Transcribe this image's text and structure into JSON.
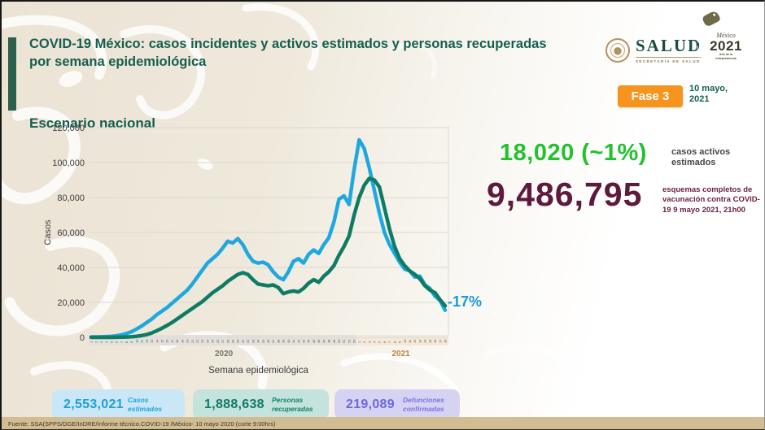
{
  "header": {
    "title": "COVID-19 México: casos incidentes y activos estimados y personas recuperadas por semana epidemiológica",
    "subtitle": "Escenario nacional"
  },
  "logos": {
    "salud": {
      "name": "SALUD",
      "subtitle": "SECRETARÍA DE SALUD"
    },
    "mexico2021": {
      "script": "México",
      "year": "2021",
      "subtitle": "Año de la Independencia"
    }
  },
  "phase": {
    "label": "Fase 3",
    "color": "#F7941E"
  },
  "report_date": "10 mayo, 2021",
  "right_panel": {
    "active": {
      "value": "18,020 (~1%)",
      "label": "casos activos estimados",
      "color": "#22C12E"
    },
    "vaccination": {
      "value": "9,486,795",
      "label": "esquemas completos de vacunación contra COVID-19 9 mayo 2021, 21h00",
      "color": "#5E1A3C",
      "label_color": "#6B2044"
    }
  },
  "stat_boxes": [
    {
      "value": "2,553,021",
      "label": "Casos estimados",
      "value_color": "#1F9FD8",
      "label_color": "#2AA3DC",
      "bg": "#C9E7F6"
    },
    {
      "value": "1,888,638",
      "label": "Personas recuperadas",
      "value_color": "#0F7A66",
      "label_color": "#12836E",
      "bg": "#C3E3DC"
    },
    {
      "value": "219,089",
      "label": "Defunciones confirmadas",
      "value_color": "#6C68E0",
      "label_color": "#7B74E4",
      "bg": "#D6D3F2"
    }
  ],
  "footer": {
    "source": "Fuente: SSA(SPPS/DGE/InDRE/Informe técnico.COVID-19 /México- 10 mayo 2020 (corte 9:00hrs)"
  },
  "chart_data": {
    "type": "line",
    "title": "",
    "xlabel": "Semana epidemiológica",
    "ylabel": "Casos",
    "ylim": [
      0,
      120000
    ],
    "yticks": [
      0,
      20000,
      40000,
      60000,
      80000,
      100000,
      120000
    ],
    "grid": true,
    "legend_position": "none",
    "x_axis": {
      "year_labels": [
        "2020",
        "2021"
      ],
      "year_label_colors": [
        "#77746e",
        "#c08448"
      ],
      "band_colors": [
        "#e4e1dc",
        "#f3e8da"
      ],
      "year_2020_weeks": [
        1,
        2,
        3,
        4,
        5,
        6,
        7,
        8,
        9,
        10,
        11,
        12,
        13,
        14,
        15,
        16,
        17,
        18,
        19,
        20,
        21,
        22,
        23,
        24,
        25,
        26,
        27,
        28,
        29,
        30,
        31,
        32,
        33,
        34,
        35,
        36,
        37,
        38,
        39,
        40,
        41,
        42,
        43,
        44,
        45,
        46,
        47,
        48,
        49,
        50,
        51,
        52,
        53
      ],
      "year_2021_weeks": [
        1,
        2,
        3,
        4,
        5,
        6,
        7,
        8,
        9,
        10,
        11,
        12,
        13,
        14,
        15,
        16,
        17,
        18
      ]
    },
    "series": [
      {
        "name": "Casos estimados",
        "color": "#1FA8E0",
        "values": [
          200,
          250,
          300,
          400,
          600,
          900,
          1400,
          2200,
          3200,
          4800,
          6500,
          8500,
          10500,
          13000,
          15000,
          17000,
          19500,
          22000,
          24500,
          27000,
          30500,
          34500,
          38500,
          42500,
          45000,
          47500,
          51000,
          55000,
          54000,
          56500,
          53000,
          47500,
          43500,
          42500,
          43000,
          41500,
          37500,
          34500,
          33000,
          37500,
          43500,
          45000,
          42500,
          47500,
          50000,
          48000,
          53000,
          57000,
          66000,
          79000,
          81000,
          76000,
          96000,
          113000,
          108000,
          97000,
          84000,
          71000,
          60000,
          53000,
          48000,
          43000,
          39000,
          38000,
          34500,
          35000,
          30000,
          28000,
          23500,
          21000,
          15500
        ]
      },
      {
        "name": "Personas recuperadas",
        "color": "#0E7B64",
        "values": [
          0,
          0,
          0,
          0,
          0,
          50,
          100,
          200,
          350,
          600,
          1000,
          1600,
          2500,
          3800,
          5200,
          6800,
          8500,
          10500,
          12500,
          14500,
          16500,
          18500,
          20500,
          23000,
          25500,
          27500,
          29500,
          32000,
          34000,
          36000,
          37000,
          36000,
          33000,
          30500,
          30000,
          29500,
          30000,
          28500,
          25000,
          26000,
          26500,
          26000,
          28000,
          31000,
          33000,
          31500,
          35000,
          37500,
          41000,
          47000,
          52000,
          58000,
          70000,
          80000,
          87000,
          91000,
          90000,
          86000,
          74000,
          62000,
          52000,
          45000,
          41000,
          38000,
          36000,
          33500,
          29500,
          27000,
          25500,
          21500,
          18000
        ]
      }
    ],
    "end_annotation": {
      "text": "-17%",
      "color": "#1A9AD8"
    }
  }
}
